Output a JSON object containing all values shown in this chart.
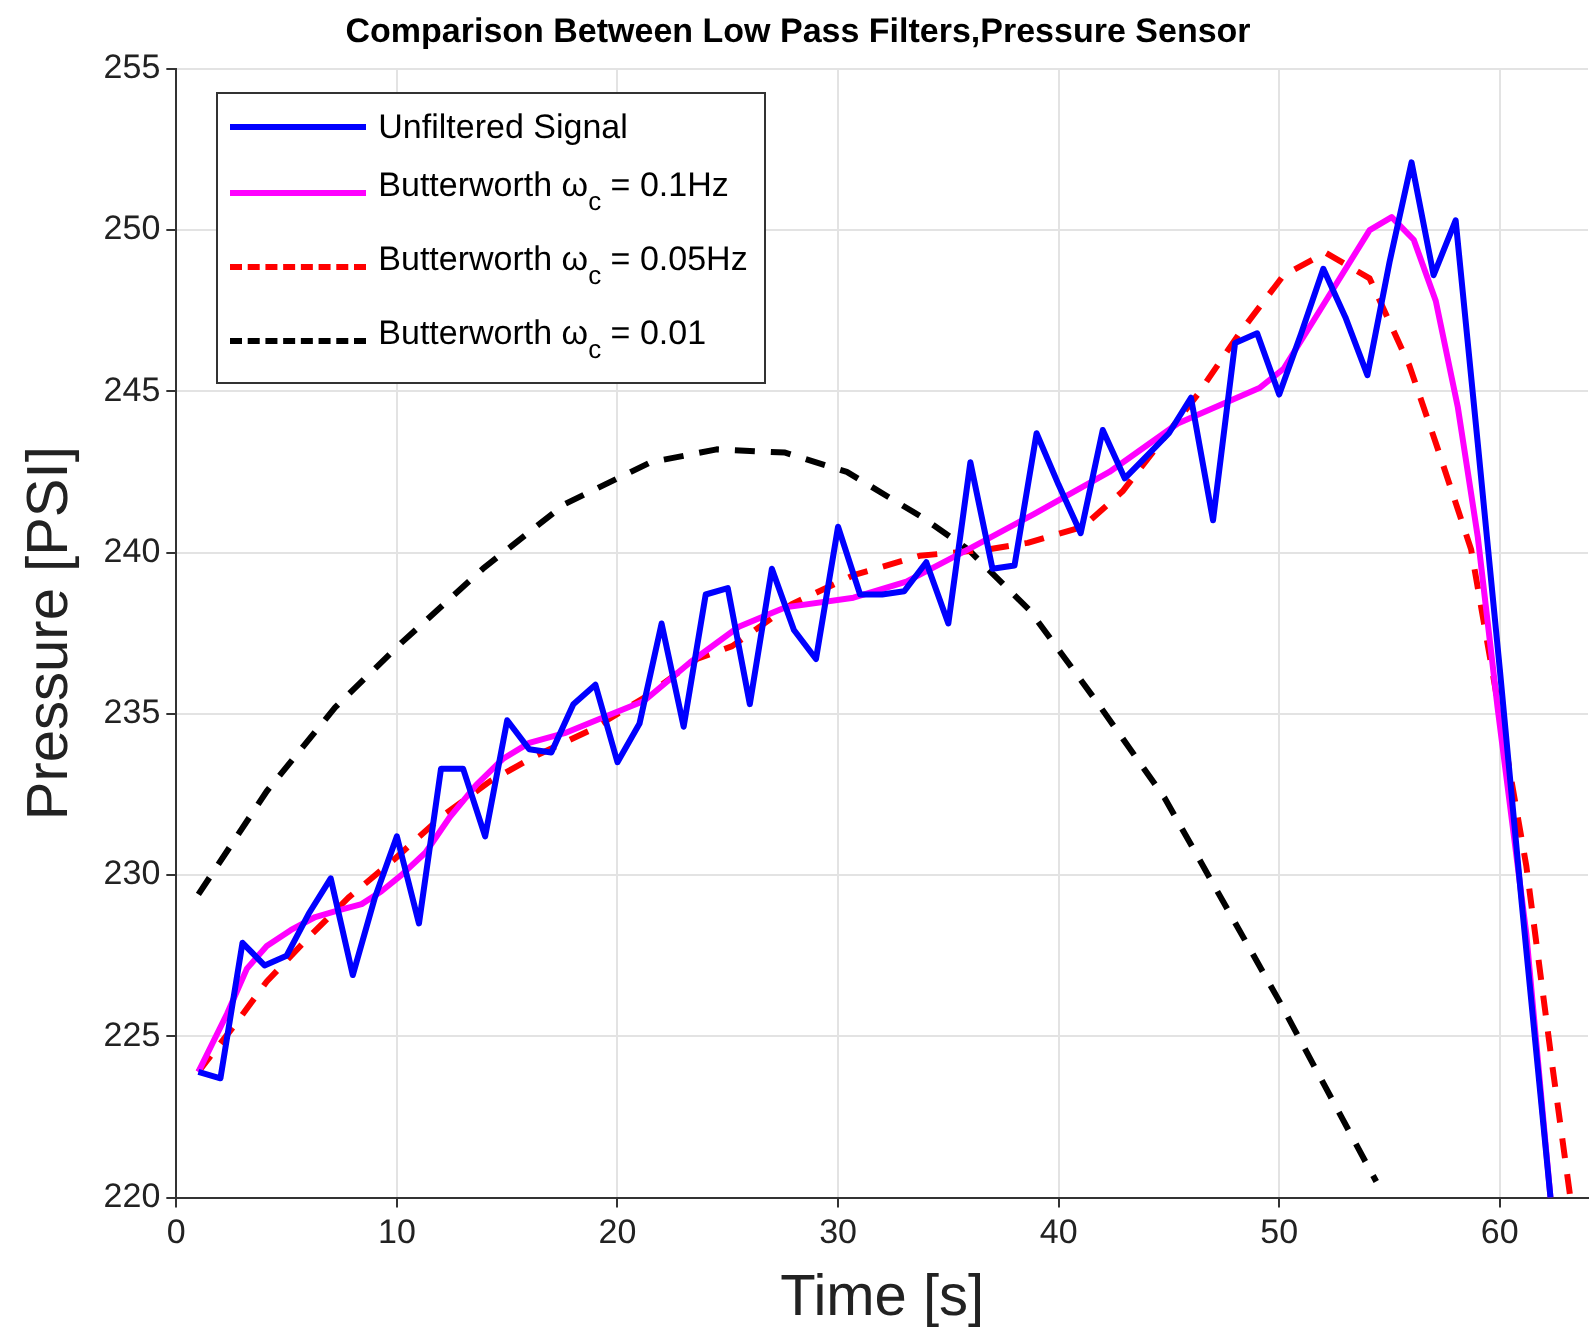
{
  "chart_data": {
    "type": "line",
    "title": "Comparison Between Low Pass Filters,Pressure Sensor",
    "xlabel": "Time [s]",
    "ylabel": "Pressure [PSI]",
    "xlim": [
      0,
      64
    ],
    "ylim": [
      220,
      255
    ],
    "xticks": [
      0,
      10,
      20,
      30,
      40,
      50,
      60
    ],
    "yticks": [
      220,
      225,
      230,
      235,
      240,
      245,
      250,
      255
    ],
    "grid": true,
    "legend": "top left",
    "marker": "none",
    "series": [
      {
        "name": "Unfiltered Signal",
        "color": "#0000ff",
        "line_style": "solid",
        "x": [
          1,
          2,
          3,
          4,
          5,
          6,
          7,
          8,
          9,
          10,
          11,
          12,
          13,
          14,
          15,
          16,
          17,
          18,
          19,
          20,
          21,
          22,
          23,
          24,
          25,
          26,
          27,
          28,
          29,
          30,
          31,
          32,
          33,
          34,
          35,
          36,
          37,
          38,
          39,
          40,
          41,
          42,
          43,
          44,
          45,
          46,
          47,
          48,
          49,
          50,
          51,
          52,
          53,
          54,
          55,
          56,
          57,
          58,
          59,
          60,
          61,
          62,
          62.3
        ],
        "values": [
          223.9,
          223.7,
          227.9,
          227.2,
          227.5,
          228.8,
          229.9,
          226.9,
          229.3,
          231.2,
          228.5,
          233.3,
          233.3,
          231.2,
          234.8,
          233.9,
          233.8,
          235.3,
          235.9,
          233.5,
          234.7,
          237.8,
          234.6,
          238.7,
          238.9,
          235.3,
          239.5,
          237.6,
          236.7,
          240.8,
          238.7,
          238.7,
          238.8,
          239.7,
          237.8,
          242.8,
          239.5,
          239.6,
          243.7,
          242.1,
          240.6,
          243.8,
          242.3,
          243.0,
          243.7,
          244.8,
          241.0,
          246.5,
          246.8,
          244.9,
          246.8,
          248.8,
          247.3,
          245.5,
          249.0,
          252.1,
          248.6,
          250.3,
          243.4,
          236.4,
          229.1,
          222.1,
          220
        ]
      },
      {
        "name": "Butterworth ω$_{c}$ = 0.1Hz",
        "color": "#ff00ff",
        "line_style": "solid",
        "x": [
          1,
          2.3,
          3.2,
          4.1,
          5.2,
          6.3,
          7.3,
          8.4,
          9.3,
          10.2,
          11.3,
          12.4,
          13.6,
          14.8,
          16,
          17.6,
          19.4,
          21.2,
          23.3,
          25.5,
          27.6,
          30.7,
          33.1,
          35.9,
          38.9,
          42.3,
          45.4,
          49.1,
          50.2,
          52.2,
          54.1,
          55.1,
          56.1,
          57.1,
          58.1,
          59,
          59.9,
          61.2,
          62.3
        ],
        "values": [
          223.9,
          225.7,
          227.1,
          227.8,
          228.3,
          228.7,
          228.9,
          229.1,
          229.5,
          230.0,
          230.7,
          231.8,
          232.8,
          233.6,
          234.1,
          234.4,
          234.9,
          235.4,
          236.6,
          237.7,
          238.3,
          238.6,
          239.1,
          240.1,
          241.2,
          242.5,
          244.0,
          245.1,
          245.7,
          247.9,
          250.0,
          250.4,
          249.7,
          247.8,
          244.5,
          240.5,
          235.2,
          228.2,
          220
        ]
      },
      {
        "name": "Butterworth ω$_{c}$ = 0.05Hz",
        "color": "#ff0000",
        "line_style": "dashed",
        "x": [
          1,
          2.7,
          4.1,
          5.9,
          7.8,
          9.9,
          12,
          14.2,
          16.3,
          18.8,
          21.2,
          23.6,
          25.2,
          27.9,
          30.7,
          33.7,
          36.8,
          38.6,
          41.1,
          42.9,
          44.6,
          46.3,
          48.2,
          50.2,
          52.1,
          54.1,
          55.9,
          57.1,
          58.7,
          61.2,
          62.4,
          63.2
        ],
        "values": [
          223.9,
          225.4,
          226.7,
          228.0,
          229.3,
          230.5,
          231.8,
          232.9,
          233.7,
          234.5,
          235.5,
          236.7,
          237.1,
          238.4,
          239.3,
          239.9,
          240.1,
          240.3,
          240.8,
          241.9,
          243.4,
          244.9,
          246.8,
          248.6,
          249.3,
          248.5,
          245.8,
          243.4,
          240.1,
          230.3,
          224.0,
          220
        ]
      },
      {
        "name": "Butterworth ω$_{c}$ = 0.01",
        "color": "#000000",
        "line_style": "dashed",
        "x": [
          1,
          4.1,
          7.2,
          10.2,
          13.9,
          17.6,
          21.5,
          24.5,
          27.6,
          30.4,
          33.8,
          35.9,
          38.7,
          41.7,
          44.8,
          50,
          54,
          54.4
        ],
        "values": [
          229.4,
          232.6,
          235.2,
          237.2,
          239.5,
          241.5,
          242.8,
          243.2,
          243.1,
          242.5,
          241.1,
          240.1,
          238.2,
          235.4,
          232.4,
          226.1,
          221.0,
          220.5
        ]
      }
    ]
  }
}
